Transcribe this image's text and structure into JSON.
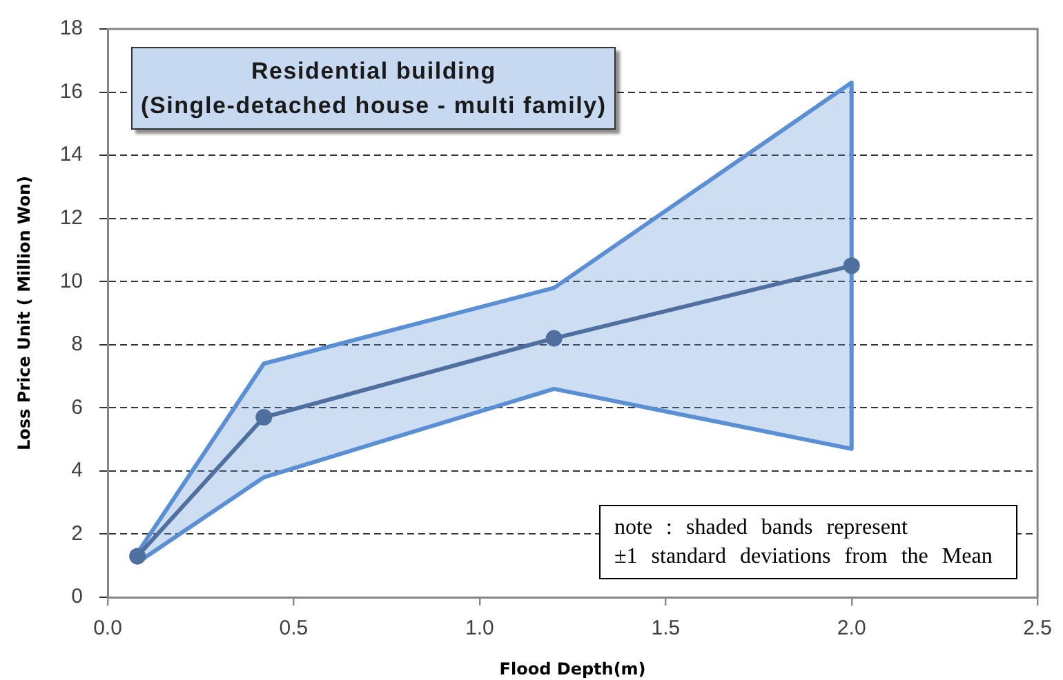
{
  "chart_data": {
    "type": "line",
    "title": "Residential building",
    "subtitle": "(Single-detached house - multi family)",
    "xlabel": "Flood Depth(m)",
    "ylabel": "Loss Price Unit ( Million Won)",
    "annotations": [
      "note : shaded bands represent",
      "±1 standard deviations from the Mean"
    ],
    "x": [
      0.08,
      0.42,
      1.2,
      2.0
    ],
    "series": [
      {
        "color": "#4f6f9f",
        "values": [
          1.3,
          5.7,
          8.2,
          10.5
        ],
        "lower": [
          1.1,
          3.8,
          6.6,
          4.7
        ],
        "upper": [
          1.4,
          7.4,
          9.8,
          16.3
        ]
      }
    ],
    "xlim": [
      0,
      2.5
    ],
    "xticks": [
      {
        "value": 0,
        "label": "0.0"
      },
      {
        "value": 0.5,
        "label": "0.5"
      },
      {
        "value": 1,
        "label": "1.0"
      },
      {
        "value": 1.5,
        "label": "1.5"
      },
      {
        "value": 2,
        "label": "2.0"
      },
      {
        "value": 2.5,
        "label": "2.5"
      }
    ],
    "ylim": [
      0,
      18
    ],
    "yticks": [
      0,
      2,
      4,
      6,
      8,
      10,
      12,
      14,
      16,
      18
    ],
    "grid": "y",
    "marker": "circle",
    "line_style": "solid"
  }
}
